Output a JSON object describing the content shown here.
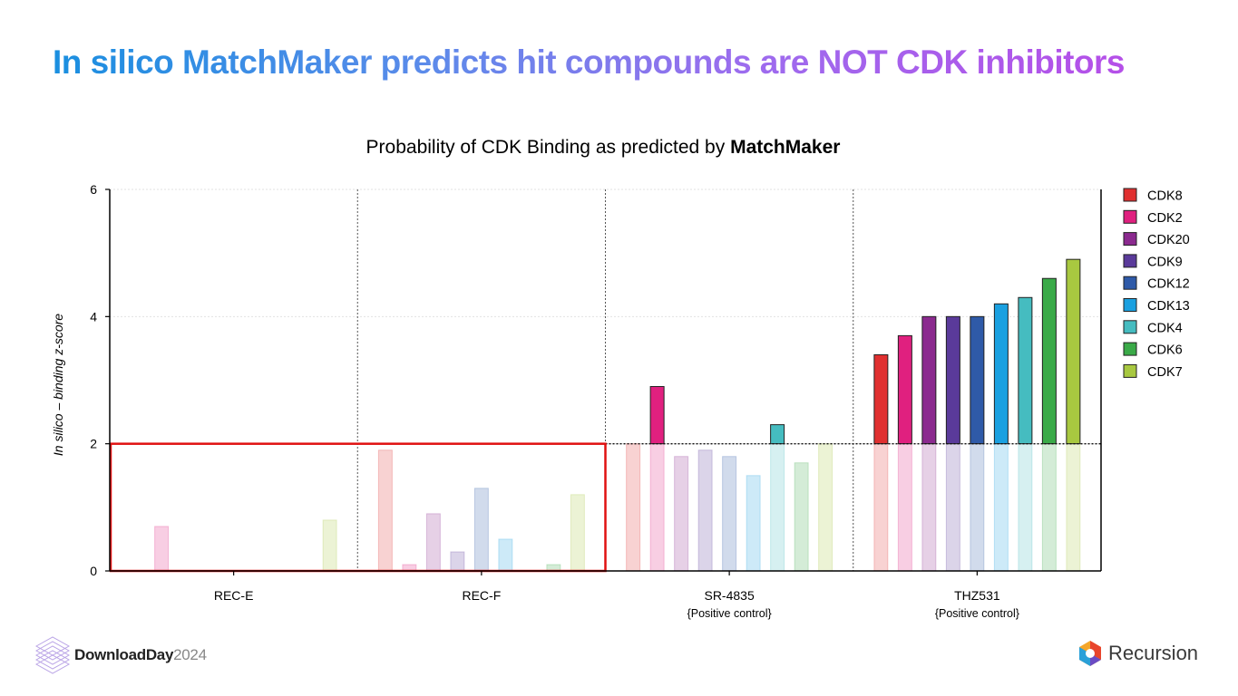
{
  "slide": {
    "title_part1": "In silico MatchMaker predicts hit compounds are NOT CDK inhibitors",
    "chart_heading_plain": "Probability of CDK Binding as predicted by ",
    "chart_heading_bold": "MatchMaker"
  },
  "footer": {
    "brand_bold": "DownloadDay",
    "brand_year": "2024",
    "company": "Recursion"
  },
  "chart_data": {
    "type": "bar",
    "title": "Probability of CDK Binding as predicted by MatchMaker",
    "ylabel": "In silico – binding z-score",
    "xlabel": "",
    "ylim": [
      0,
      6
    ],
    "yticks": [
      0,
      2,
      4,
      6
    ],
    "threshold": 2,
    "legend_position": "right",
    "groups": [
      {
        "label": "REC-E",
        "sublabel": ""
      },
      {
        "label": "REC-F",
        "sublabel": ""
      },
      {
        "label": "SR-4835",
        "sublabel": "{Positive control}"
      },
      {
        "label": "THZ531",
        "sublabel": "{Positive control}"
      }
    ],
    "series": [
      {
        "name": "CDK8",
        "color": "#e03030",
        "values": [
          0,
          1.9,
          2.0,
          3.4
        ]
      },
      {
        "name": "CDK2",
        "color": "#e0207f",
        "values": [
          0.7,
          0.1,
          2.9,
          3.7
        ]
      },
      {
        "name": "CDK20",
        "color": "#8b2a8f",
        "values": [
          0,
          0.9,
          1.8,
          4.0
        ]
      },
      {
        "name": "CDK9",
        "color": "#5a3a9a",
        "values": [
          0,
          0.3,
          1.9,
          4.0
        ]
      },
      {
        "name": "CDK12",
        "color": "#2f5aa8",
        "values": [
          0,
          1.3,
          1.8,
          4.0
        ]
      },
      {
        "name": "CDK13",
        "color": "#1aa0e0",
        "values": [
          0,
          0.5,
          1.5,
          4.2
        ]
      },
      {
        "name": "CDK4",
        "color": "#45bcc0",
        "values": [
          0,
          0,
          2.3,
          4.3
        ]
      },
      {
        "name": "CDK6",
        "color": "#3aaa48",
        "values": [
          0,
          0.1,
          1.7,
          4.6
        ]
      },
      {
        "name": "CDK7",
        "color": "#a8c840",
        "values": [
          0.8,
          1.2,
          2.0,
          4.9
        ]
      }
    ],
    "highlight_color": "#e01010"
  }
}
